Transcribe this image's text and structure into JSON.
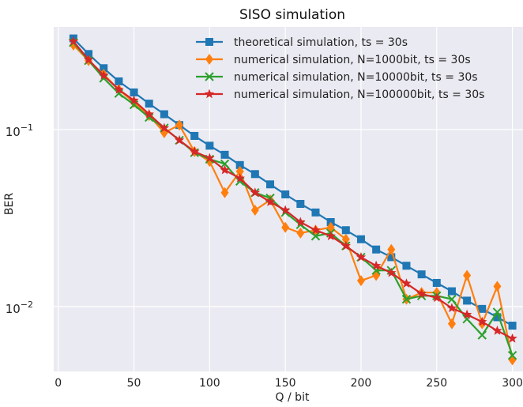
{
  "chart_data": {
    "type": "line",
    "title": "SISO simulation",
    "xlabel": "Q / bit",
    "ylabel": "BER",
    "yscale": "log",
    "xlim": [
      -3,
      307
    ],
    "ylim": [
      0.0043,
      0.38
    ],
    "xticks": [
      0,
      50,
      100,
      150,
      200,
      250,
      300
    ],
    "yticks": [
      {
        "value": 0.1,
        "base": "10",
        "exp": "−1"
      },
      {
        "value": 0.01,
        "base": "10",
        "exp": "−2"
      }
    ],
    "grid": true,
    "background": "#eaeaf2",
    "legend_position": "top-right",
    "x": [
      10,
      20,
      30,
      40,
      50,
      60,
      70,
      80,
      90,
      100,
      110,
      120,
      130,
      140,
      150,
      160,
      170,
      180,
      190,
      200,
      210,
      220,
      230,
      240,
      250,
      260,
      270,
      280,
      290,
      300
    ],
    "series": [
      {
        "name": "theoretical simulation, ts = 30s",
        "color": "#1f77b4",
        "marker": "square",
        "values": [
          0.327,
          0.267,
          0.222,
          0.187,
          0.162,
          0.14,
          0.122,
          0.106,
          0.092,
          0.081,
          0.072,
          0.063,
          0.056,
          0.049,
          0.043,
          0.038,
          0.034,
          0.03,
          0.027,
          0.024,
          0.021,
          0.019,
          0.017,
          0.0152,
          0.0136,
          0.0122,
          0.0108,
          0.0097,
          0.0087,
          0.0078
        ]
      },
      {
        "name": "numerical simulation, N=1000bit, ts = 30s",
        "color": "#ff7f0e",
        "marker": "diamond",
        "values": [
          0.3,
          0.245,
          0.205,
          0.168,
          0.142,
          0.12,
          0.096,
          0.106,
          0.075,
          0.066,
          0.044,
          0.058,
          0.035,
          0.04,
          0.028,
          0.026,
          0.027,
          0.028,
          0.024,
          0.014,
          0.015,
          0.021,
          0.011,
          0.012,
          0.012,
          0.008,
          0.015,
          0.008,
          0.013,
          0.005
        ]
      },
      {
        "name": "numerical simulation, N=10000bit, ts = 30s",
        "color": "#2ca02c",
        "marker": "x",
        "values": [
          0.31,
          0.245,
          0.195,
          0.16,
          0.138,
          0.117,
          0.102,
          0.087,
          0.074,
          0.068,
          0.064,
          0.051,
          0.044,
          0.041,
          0.034,
          0.029,
          0.025,
          0.026,
          0.022,
          0.019,
          0.016,
          0.016,
          0.011,
          0.0115,
          0.0115,
          0.011,
          0.0085,
          0.0069,
          0.0093,
          0.0053
        ]
      },
      {
        "name": "numerical simulation, N=100000bit, ts = 30s",
        "color": "#d62728",
        "marker": "star",
        "values": [
          0.315,
          0.248,
          0.202,
          0.168,
          0.146,
          0.122,
          0.102,
          0.087,
          0.075,
          0.069,
          0.059,
          0.053,
          0.044,
          0.039,
          0.035,
          0.03,
          0.027,
          0.025,
          0.022,
          0.019,
          0.017,
          0.0155,
          0.0135,
          0.0118,
          0.0112,
          0.0098,
          0.009,
          0.0082,
          0.0073,
          0.0066
        ]
      }
    ]
  }
}
